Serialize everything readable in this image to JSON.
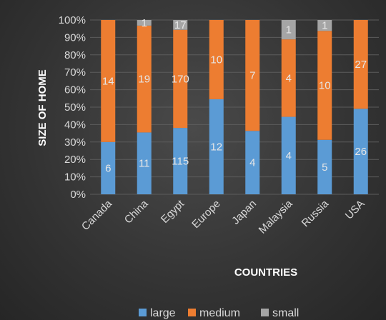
{
  "chart_data": {
    "type": "bar",
    "stacked": "percent",
    "xlabel": "COUNTRIES",
    "ylabel": "SIZE OF HOME",
    "categories": [
      "Canada",
      "China",
      "Egypt",
      "Europe",
      "Japan",
      "Malaysia",
      "Russia",
      "USA"
    ],
    "series": [
      {
        "name": "large",
        "color": "#5b9bd5",
        "values": [
          6,
          11,
          115,
          12,
          4,
          4,
          5,
          26
        ]
      },
      {
        "name": "medium",
        "color": "#ed7d31",
        "values": [
          14,
          19,
          170,
          10,
          7,
          4,
          10,
          27
        ]
      },
      {
        "name": "small",
        "color": "#a5a5a5",
        "values": [
          null,
          1,
          17,
          null,
          null,
          1,
          1,
          null
        ]
      }
    ],
    "yticks": [
      "0%",
      "10%",
      "20%",
      "30%",
      "40%",
      "50%",
      "60%",
      "70%",
      "80%",
      "90%",
      "100%"
    ],
    "ylim": [
      0,
      100
    ],
    "grid": true,
    "legend": "bottom"
  }
}
